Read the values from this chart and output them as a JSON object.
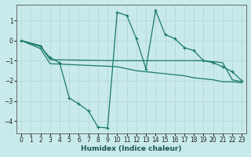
{
  "xlabel": "Humidex (Indice chaleur)",
  "background_color": "#c8eaea",
  "grid_color": "#b8d8d8",
  "line_color": "#1a7a6a",
  "xlim": [
    -0.5,
    23.5
  ],
  "ylim": [
    -4.6,
    1.8
  ],
  "xticks": [
    0,
    1,
    2,
    3,
    4,
    5,
    6,
    7,
    8,
    9,
    10,
    11,
    12,
    13,
    14,
    15,
    16,
    17,
    18,
    19,
    20,
    21,
    22,
    23
  ],
  "yticks": [
    -4,
    -3,
    -2,
    -1,
    0,
    1
  ],
  "series1_x": [
    0,
    2,
    3,
    4,
    5,
    6,
    7,
    8,
    9,
    10,
    11,
    12,
    13,
    14,
    15,
    16,
    17,
    18,
    19,
    20,
    21,
    22,
    23
  ],
  "series1_y": [
    0,
    -0.3,
    -0.85,
    -1.1,
    -2.85,
    -3.15,
    -3.5,
    -4.3,
    -4.35,
    1.4,
    1.25,
    0.1,
    -1.4,
    1.5,
    0.3,
    0.1,
    -0.35,
    -0.5,
    -1.0,
    -1.1,
    -1.3,
    -1.55,
    -2.0
  ],
  "series2_x": [
    0,
    2,
    3,
    10,
    19,
    20,
    21,
    22,
    23
  ],
  "series2_y": [
    0,
    -0.25,
    -0.95,
    -1.0,
    -1.0,
    -1.05,
    -1.1,
    -1.95,
    -2.05
  ],
  "series3_x": [
    0,
    2,
    3,
    10,
    11,
    12,
    13,
    14,
    15,
    16,
    17,
    18,
    19,
    20,
    21,
    22,
    23
  ],
  "series3_y": [
    0,
    -0.4,
    -1.15,
    -1.3,
    -1.4,
    -1.5,
    -1.55,
    -1.6,
    -1.65,
    -1.7,
    -1.75,
    -1.85,
    -1.9,
    -1.95,
    -2.05,
    -2.05,
    -2.1
  ]
}
